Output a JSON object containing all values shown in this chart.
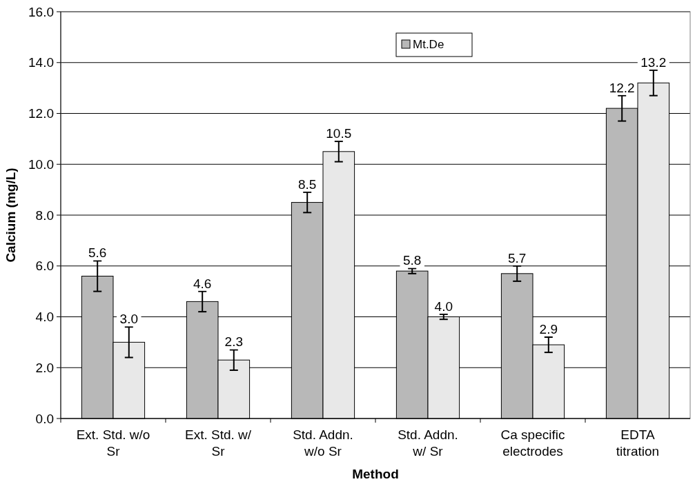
{
  "chart_data": {
    "type": "bar",
    "xlabel": "Method",
    "ylabel": "Calcium  (mg/L)",
    "categories": [
      "Ext. Std. w/o\nSr",
      "Ext. Std. w/\nSr",
      "Std. Addn.\nw/o Sr",
      "Std. Addn.\nw/ Sr",
      "Ca specific\nelectrodes",
      "EDTA\ntitration"
    ],
    "series": [
      {
        "name": "Mt.De",
        "color": "#b8b8b8",
        "values": [
          5.6,
          4.6,
          8.5,
          5.8,
          5.7,
          12.2
        ],
        "errors": [
          0.6,
          0.4,
          0.4,
          0.1,
          0.3,
          0.5
        ],
        "value_labels": [
          "5.6",
          "4.6",
          "8.5",
          "5.8",
          "5.7",
          "12.2"
        ]
      },
      {
        "color": "#e8e8e8",
        "values": [
          3.0,
          2.3,
          10.5,
          4.0,
          2.9,
          13.2
        ],
        "errors": [
          0.6,
          0.4,
          0.4,
          0.1,
          0.3,
          0.5
        ],
        "value_labels": [
          "3.0",
          "2.3",
          "10.5",
          "4.0",
          "2.9",
          "13.2"
        ]
      }
    ],
    "ylim": [
      0,
      16
    ],
    "yticks": [
      {
        "value": 0,
        "label": "0.0"
      },
      {
        "value": 2,
        "label": "2.0"
      },
      {
        "value": 4,
        "label": "4.0"
      },
      {
        "value": 6,
        "label": "6.0"
      },
      {
        "value": 8,
        "label": "8.0"
      },
      {
        "value": 10,
        "label": "10.0"
      },
      {
        "value": 12,
        "label": "12.0"
      },
      {
        "value": 14,
        "label": "14.0"
      },
      {
        "value": 16,
        "label": "16.0"
      }
    ],
    "grid": "y",
    "legend": "top"
  }
}
